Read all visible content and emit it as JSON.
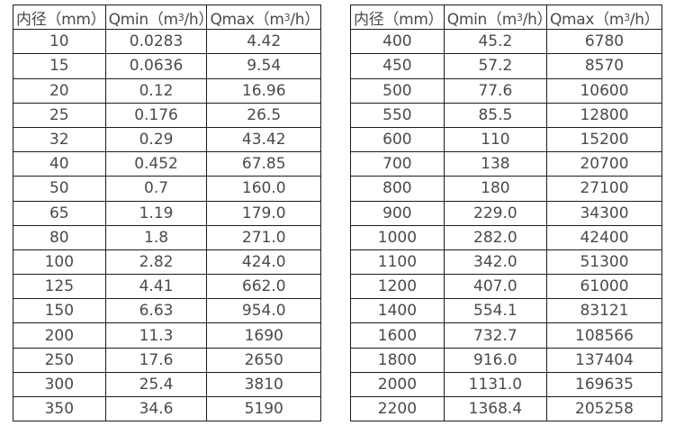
{
  "colors": {
    "background": "#ffffff",
    "border": "#1c1c1c",
    "text": "#4a4a4a"
  },
  "table_left": {
    "headers": [
      "内径（mm）",
      "Qmin（m³/h）",
      "Qmax（m³/h）"
    ],
    "rows": [
      [
        "10",
        "0.0283",
        "4.42"
      ],
      [
        "15",
        "0.0636",
        "9.54"
      ],
      [
        "20",
        "0.12",
        "16.96"
      ],
      [
        "25",
        "0.176",
        "26.5"
      ],
      [
        "32",
        "0.29",
        "43.42"
      ],
      [
        "40",
        "0.452",
        "67.85"
      ],
      [
        "50",
        "0.7",
        "160.0"
      ],
      [
        "65",
        "1.19",
        "179.0"
      ],
      [
        "80",
        "1.8",
        "271.0"
      ],
      [
        "100",
        "2.82",
        "424.0"
      ],
      [
        "125",
        "4.41",
        "662.0"
      ],
      [
        "150",
        "6.63",
        "954.0"
      ],
      [
        "200",
        "11.3",
        "1690"
      ],
      [
        "250",
        "17.6",
        "2650"
      ],
      [
        "300",
        "25.4",
        "3810"
      ],
      [
        "350",
        "34.6",
        "5190"
      ]
    ]
  },
  "table_right": {
    "headers": [
      "内径（mm）",
      "Qmin（m³/h）",
      "Qmax（m³/h）"
    ],
    "rows": [
      [
        "400",
        "45.2",
        "6780"
      ],
      [
        "450",
        "57.2",
        "8570"
      ],
      [
        "500",
        "77.6",
        "10600"
      ],
      [
        "550",
        "85.5",
        "12800"
      ],
      [
        "600",
        "110",
        "15200"
      ],
      [
        "700",
        "138",
        "20700"
      ],
      [
        "800",
        "180",
        "27100"
      ],
      [
        "900",
        "229.0",
        "34300"
      ],
      [
        "1000",
        "282.0",
        "42400"
      ],
      [
        "1100",
        "342.0",
        "51300"
      ],
      [
        "1200",
        "407.0",
        "61000"
      ],
      [
        "1400",
        "554.1",
        "83121"
      ],
      [
        "1600",
        "732.7",
        "108566"
      ],
      [
        "1800",
        "916.0",
        "137404"
      ],
      [
        "2000",
        "1131.0",
        "169635"
      ],
      [
        "2200",
        "1368.4",
        "205258"
      ]
    ]
  }
}
